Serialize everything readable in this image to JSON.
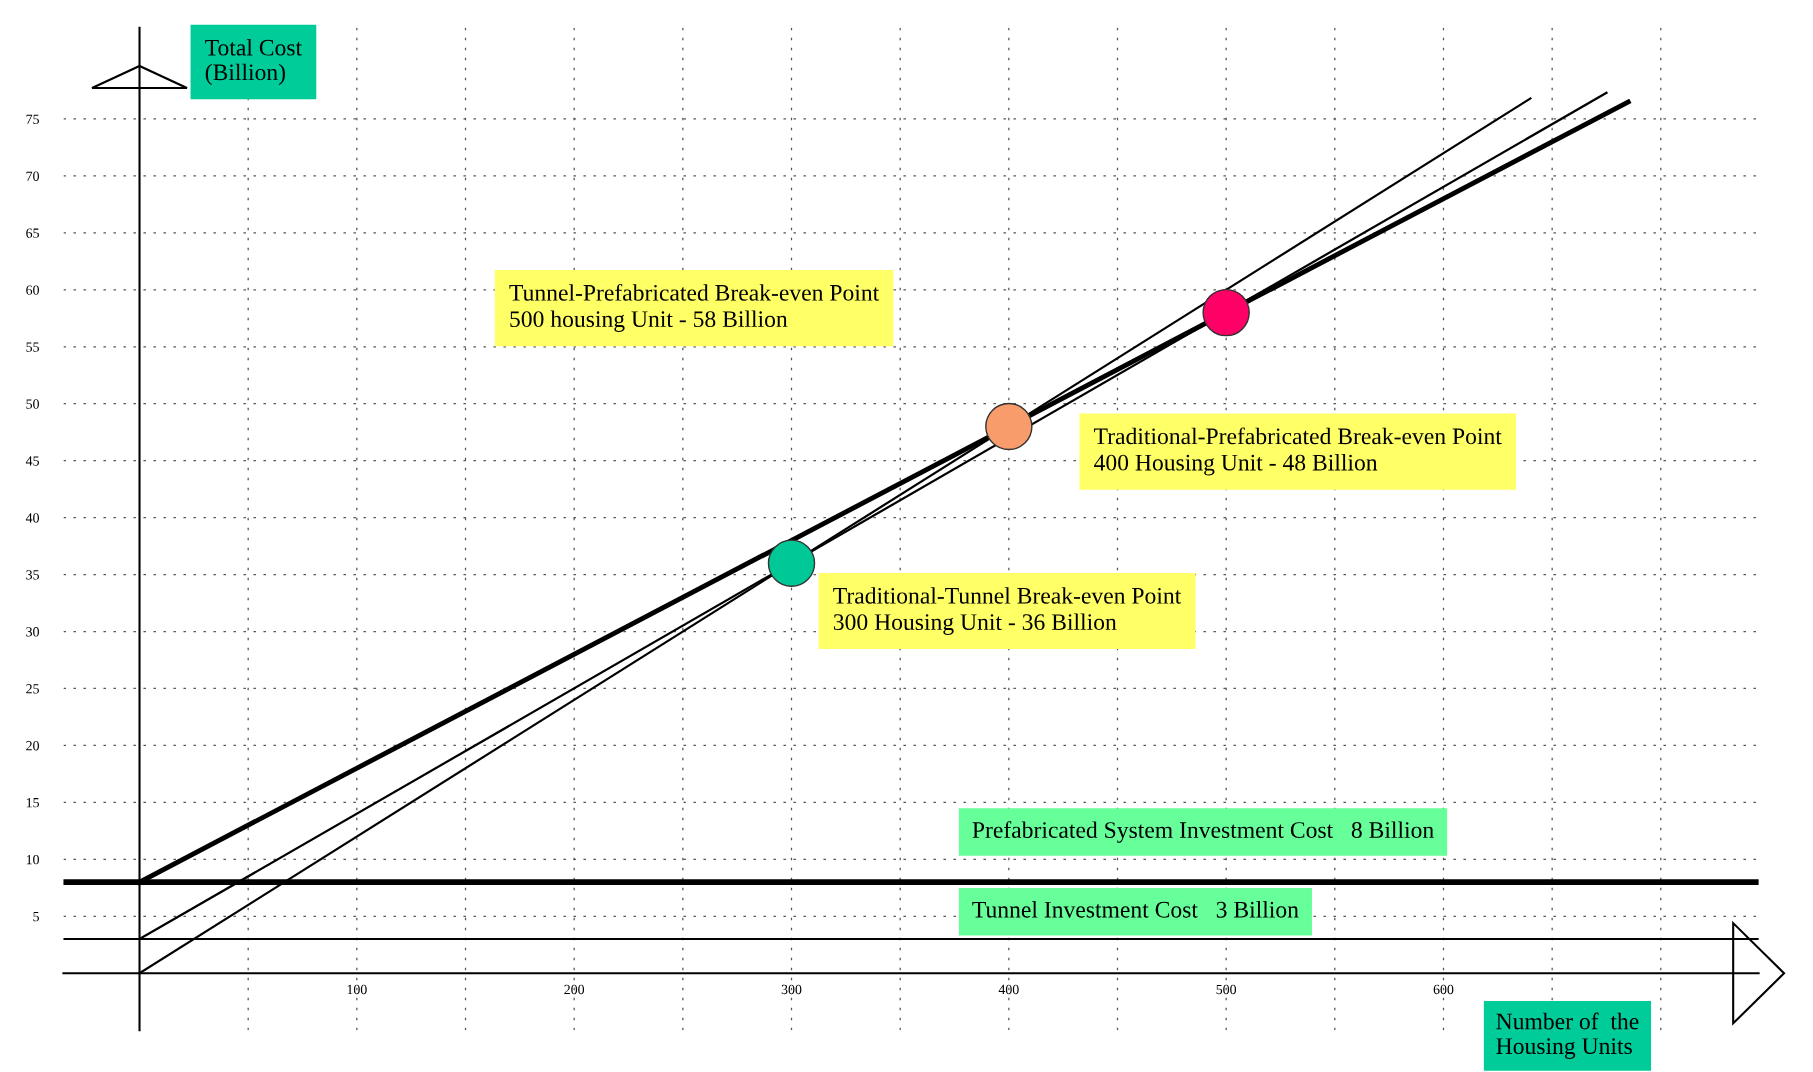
{
  "chart_data": {
    "type": "line",
    "xlabel": "Number of  the\nHousing Units",
    "ylabel": "Total Cost\n(Billion)",
    "xlim": [
      -35,
      745
    ],
    "ylim": [
      -5,
      83
    ],
    "xticks": [
      {
        "value": 50,
        "label": null
      },
      100,
      {
        "value": 150,
        "label": null
      },
      200,
      {
        "value": 250,
        "label": null
      },
      300,
      {
        "value": 350,
        "label": null
      },
      400,
      {
        "value": 450,
        "label": null
      },
      500,
      {
        "value": 550,
        "label": null
      },
      600,
      {
        "value": 650,
        "label": null
      },
      {
        "value": 700,
        "label": null
      }
    ],
    "yticks": [
      5,
      10,
      15,
      20,
      25,
      30,
      35,
      40,
      45,
      50,
      55,
      60,
      65,
      70,
      75
    ],
    "grid": true,
    "series": [
      {
        "color": "#000000",
        "x": [
          0,
          640
        ],
        "values": [
          0,
          76.8
        ]
      },
      {
        "color": "#000000",
        "x": [
          0,
          675
        ],
        "values": [
          3,
          77.3
        ]
      },
      {
        "color": "#000000",
        "x": [
          0,
          685
        ],
        "values": [
          8,
          76.5
        ]
      },
      {
        "type": "scatter",
        "x": [
          300,
          400,
          500
        ],
        "values": [
          36,
          48,
          58
        ],
        "colors": [
          "#00c896",
          "#f79c6a",
          "#ff0066"
        ]
      }
    ],
    "ref_lines": [
      {
        "axis": "y",
        "value": 8,
        "label": "Prefabricated System Investment Cost   8 Billion",
        "color": "#000000"
      },
      {
        "axis": "y",
        "value": 3,
        "label": "Tunnel Investment Cost   3 Billion",
        "color": "#000000"
      }
    ],
    "annotations": [
      "Tunnel-Prefabricated Break-even Point\n500 housing Unit - 58 Billion",
      "Traditional-Prefabricated Break-even Point\n400 Housing Unit - 48 Billion",
      "Traditional-Tunnel Break-even Point\n300 Housing Unit - 36 Billion"
    ]
  }
}
